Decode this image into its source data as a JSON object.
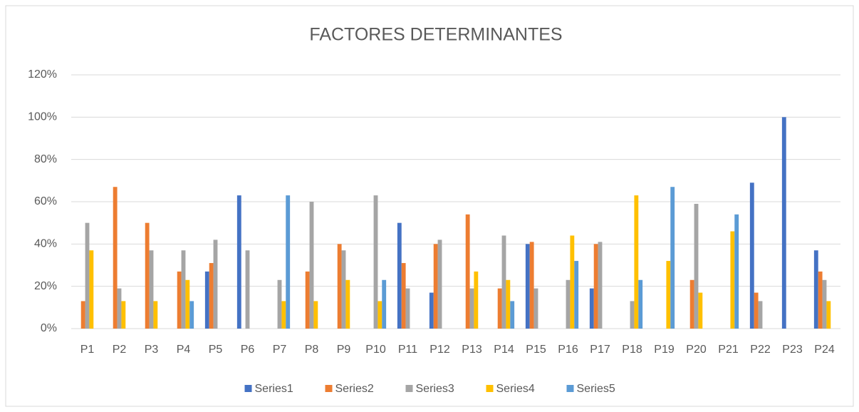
{
  "chart_data": {
    "type": "bar",
    "title": "FACTORES DETERMINANTES",
    "categories": [
      "P1",
      "P2",
      "P3",
      "P4",
      "P5",
      "P6",
      "P7",
      "P8",
      "P9",
      "P10",
      "P11",
      "P12",
      "P13",
      "P14",
      "P15",
      "P16",
      "P17",
      "P18",
      "P19",
      "P20",
      "P21",
      "P22",
      "P23",
      "P24"
    ],
    "series": [
      {
        "name": "Series1",
        "color": "#4472c4",
        "values": [
          0,
          0,
          0,
          0,
          27,
          63,
          0,
          0,
          0,
          0,
          50,
          17,
          0,
          0,
          40,
          0,
          19,
          0,
          0,
          0,
          0,
          69,
          100,
          37
        ]
      },
      {
        "name": "Series2",
        "color": "#ed7d31",
        "values": [
          13,
          67,
          50,
          27,
          31,
          0,
          0,
          27,
          40,
          0,
          31,
          40,
          54,
          19,
          41,
          0,
          40,
          0,
          0,
          23,
          0,
          17,
          0,
          27
        ]
      },
      {
        "name": "Series3",
        "color": "#a5a5a5",
        "values": [
          50,
          19,
          37,
          37,
          42,
          37,
          23,
          60,
          37,
          63,
          19,
          42,
          19,
          44,
          19,
          23,
          41,
          13,
          0,
          59,
          0,
          13,
          0,
          23
        ]
      },
      {
        "name": "Series4",
        "color": "#ffc000",
        "values": [
          37,
          13,
          13,
          23,
          0,
          0,
          13,
          13,
          23,
          13,
          0,
          0,
          27,
          23,
          0,
          44,
          0,
          63,
          32,
          17,
          46,
          0,
          0,
          13
        ]
      },
      {
        "name": "Series5",
        "color": "#5b9bd5",
        "values": [
          0,
          0,
          0,
          13,
          0,
          0,
          63,
          0,
          0,
          23,
          0,
          0,
          0,
          13,
          0,
          32,
          0,
          23,
          67,
          0,
          54,
          0,
          0,
          0
        ]
      }
    ],
    "ylim": [
      0,
      120
    ],
    "yticks": [
      {
        "value": 0,
        "label": "0%"
      },
      {
        "value": 20,
        "label": "20%"
      },
      {
        "value": 40,
        "label": "40%"
      },
      {
        "value": 60,
        "label": "60%"
      },
      {
        "value": 80,
        "label": "80%"
      },
      {
        "value": 100,
        "label": "100%"
      },
      {
        "value": 120,
        "label": "120%"
      }
    ],
    "grid": true,
    "legend": "bottom"
  }
}
